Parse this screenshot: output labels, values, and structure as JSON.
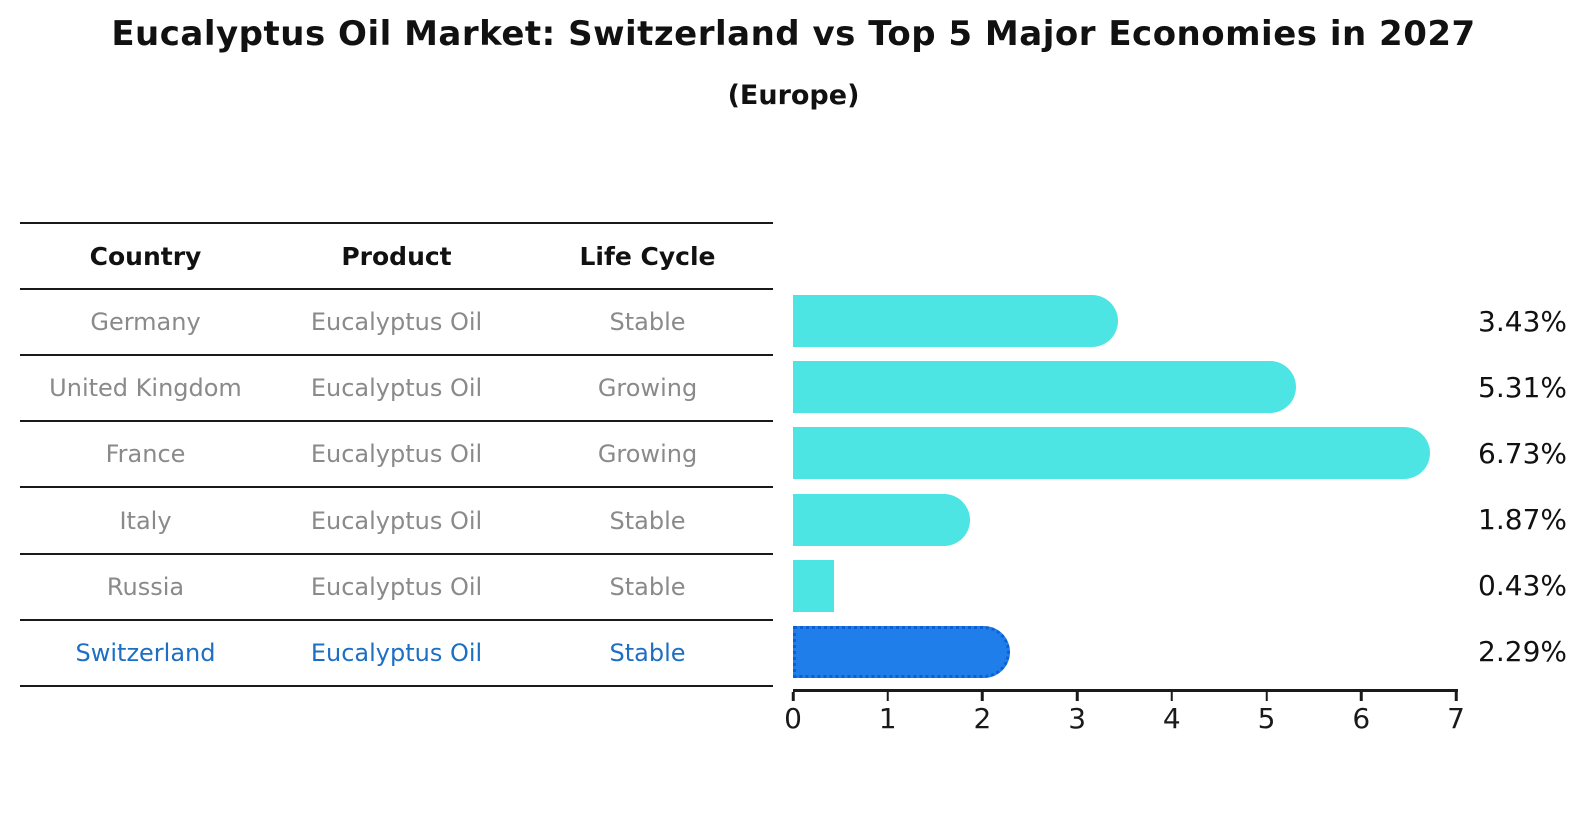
{
  "title": "Eucalyptus Oil Market: Switzerland vs Top 5 Major Economies in 2027",
  "subtitle": "(Europe)",
  "table": {
    "headers": [
      "Country",
      "Product",
      "Life Cycle"
    ],
    "rows": [
      {
        "country": "Germany",
        "product": "Eucalyptus Oil",
        "life_cycle": "Stable",
        "highlight": false
      },
      {
        "country": "United Kingdom",
        "product": "Eucalyptus Oil",
        "life_cycle": "Growing",
        "highlight": false
      },
      {
        "country": "France",
        "product": "Eucalyptus Oil",
        "life_cycle": "Growing",
        "highlight": false
      },
      {
        "country": "Italy",
        "product": "Eucalyptus Oil",
        "life_cycle": "Stable",
        "highlight": false
      },
      {
        "country": "Russia",
        "product": "Eucalyptus Oil",
        "life_cycle": "Stable",
        "highlight": false
      },
      {
        "country": "Switzerland",
        "product": "Eucalyptus Oil",
        "life_cycle": "Stable",
        "highlight": true
      }
    ]
  },
  "chart_data": {
    "type": "bar",
    "orientation": "horizontal",
    "title": "Eucalyptus Oil Market: Switzerland vs Top 5 Major Economies in 2027 (Europe)",
    "categories": [
      "Germany",
      "United Kingdom",
      "France",
      "Italy",
      "Russia",
      "Switzerland"
    ],
    "values": [
      3.43,
      5.31,
      6.73,
      1.87,
      0.43,
      2.29
    ],
    "value_labels": [
      "3.43%",
      "5.31%",
      "6.73%",
      "1.87%",
      "0.43%",
      "2.29%"
    ],
    "xlim": [
      0,
      7
    ],
    "x_ticks": [
      0,
      1,
      2,
      3,
      4,
      5,
      6,
      7
    ],
    "grid": false,
    "legend": "none",
    "highlight_index": 5
  },
  "colors": {
    "bar_color": "#4cе5e4",
    "bar_color_hex": "#4CE5E4",
    "highlight_color": "#1F7EE9",
    "highlight_text": "#1D6FC4",
    "row_text": "#8A8A8A",
    "axis_text": "#1A1A1A"
  }
}
